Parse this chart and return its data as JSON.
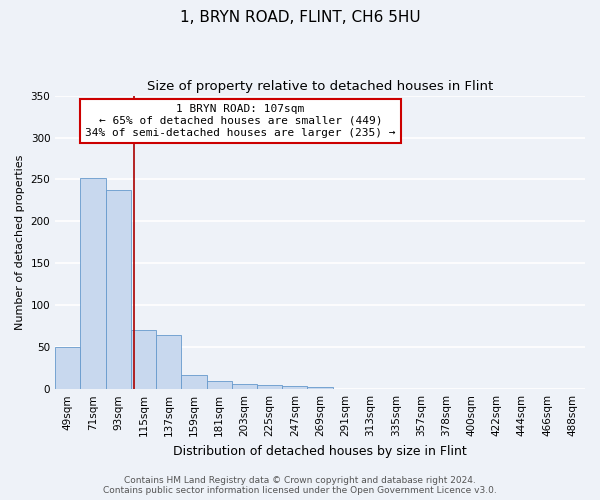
{
  "title": "1, BRYN ROAD, FLINT, CH6 5HU",
  "subtitle": "Size of property relative to detached houses in Flint",
  "xlabel": "Distribution of detached houses by size in Flint",
  "ylabel": "Number of detached properties",
  "bar_color": "#c8d8ee",
  "bar_edge_color": "#6699cc",
  "categories": [
    "49sqm",
    "71sqm",
    "93sqm",
    "115sqm",
    "137sqm",
    "159sqm",
    "181sqm",
    "203sqm",
    "225sqm",
    "247sqm",
    "269sqm",
    "291sqm",
    "313sqm",
    "335sqm",
    "357sqm",
    "378sqm",
    "400sqm",
    "422sqm",
    "444sqm",
    "466sqm",
    "488sqm"
  ],
  "values": [
    50,
    252,
    237,
    70,
    65,
    17,
    10,
    6,
    5,
    4,
    3,
    0,
    0,
    0,
    0,
    0,
    0,
    0,
    0,
    0,
    0
  ],
  "ylim": [
    0,
    350
  ],
  "yticks": [
    0,
    50,
    100,
    150,
    200,
    250,
    300,
    350
  ],
  "red_line_x": 2.636,
  "annotation_title": "1 BRYN ROAD: 107sqm",
  "annotation_line1": "← 65% of detached houses are smaller (449)",
  "annotation_line2": "34% of semi-detached houses are larger (235) →",
  "footer_line1": "Contains HM Land Registry data © Crown copyright and database right 2024.",
  "footer_line2": "Contains public sector information licensed under the Open Government Licence v3.0.",
  "background_color": "#eef2f8",
  "grid_color": "#dde4f0",
  "title_fontsize": 11,
  "subtitle_fontsize": 9.5,
  "xlabel_fontsize": 9,
  "ylabel_fontsize": 8,
  "tick_fontsize": 7.5,
  "annotation_fontsize": 8,
  "footer_fontsize": 6.5
}
